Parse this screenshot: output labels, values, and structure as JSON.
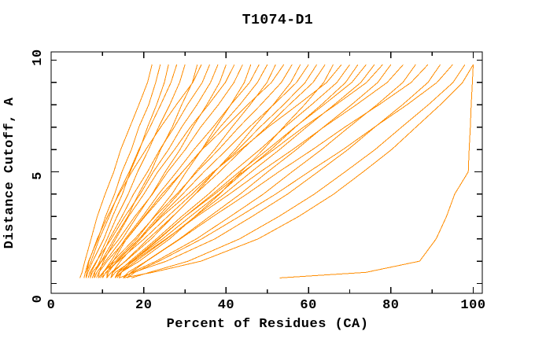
{
  "chart_data": {
    "type": "line",
    "title": "T1074-D1",
    "line_color": "#ff8c00",
    "axis_color": "#000000",
    "background_color": "#ffffff",
    "grid": false,
    "legend": "none",
    "x_axis": {
      "label": "Percent of Residues (CA)",
      "range": [
        -2.5,
        102.2
      ],
      "minor_tick_interval": 10,
      "major_tick_interval": 20,
      "tick_labels": [
        0,
        20,
        40,
        60,
        80,
        100
      ]
    },
    "y_axis": {
      "label": "Distance Cutoff, A",
      "range": [
        -0.44,
        10.37
      ],
      "minor_tick_interval": 1,
      "major_ticks": [
        5
      ],
      "tick_labels": [
        0,
        5,
        10
      ]
    },
    "cutoffs": [
      0.25,
      0.5,
      1,
      2,
      3,
      4,
      5,
      6,
      7,
      8,
      9,
      9.8
    ],
    "series": [
      [
        4.5,
        5,
        5.7,
        7.2,
        8.7,
        10.6,
        12.7,
        14.4,
        16.6,
        18.8,
        20.9,
        22
      ],
      [
        5.5,
        5.8,
        6.6,
        8.9,
        10.7,
        12.9,
        14.7,
        17,
        18.8,
        21.2,
        22.9,
        24
      ],
      [
        6,
        6.4,
        7.6,
        10.3,
        12.4,
        14.8,
        16.7,
        19,
        20.9,
        23.1,
        25,
        26
      ],
      [
        6,
        6.1,
        7.2,
        9.2,
        11.6,
        13.8,
        16.5,
        18.8,
        21.5,
        24.1,
        26.6,
        28
      ],
      [
        7,
        7.2,
        8.6,
        11.1,
        13.5,
        16.2,
        18.5,
        21.2,
        23.6,
        26.3,
        28.7,
        30
      ],
      [
        7,
        7.5,
        9.7,
        12.8,
        16.1,
        18.7,
        21.7,
        24.1,
        26.9,
        29.2,
        31.8,
        33
      ],
      [
        6,
        6.1,
        6.7,
        8.7,
        11.2,
        14,
        17.1,
        20.5,
        24.1,
        27.9,
        31.9,
        34
      ],
      [
        8,
        8.1,
        9.3,
        11.7,
        14.7,
        17.5,
        20.9,
        23.9,
        27.4,
        30.6,
        34.2,
        36
      ],
      [
        6.5,
        6.9,
        8.5,
        12.1,
        15.4,
        19.1,
        22.3,
        26,
        29.2,
        32.9,
        36.2,
        38
      ],
      [
        8,
        8.6,
        10.7,
        14.8,
        18.3,
        22,
        25.2,
        28.8,
        31.9,
        35.3,
        38.4,
        40
      ],
      [
        9,
        9.2,
        10.2,
        13.2,
        16.3,
        20,
        23.4,
        27.5,
        31.3,
        35.7,
        39.8,
        42
      ],
      [
        7.5,
        8,
        9.8,
        14,
        17.8,
        22.1,
        25.8,
        30.1,
        33.8,
        38.1,
        41.9,
        44
      ],
      [
        9,
        10.1,
        13.1,
        18.3,
        22.5,
        26.8,
        30.3,
        34.1,
        37.5,
        41.1,
        44.4,
        46
      ],
      [
        10,
        10.2,
        12,
        15.5,
        19.7,
        23.6,
        28,
        32.2,
        36.8,
        41.1,
        45.7,
        48
      ],
      [
        8.5,
        9.1,
        11.1,
        15.9,
        20.3,
        25,
        29.4,
        34.1,
        38.5,
        43.3,
        47.6,
        50
      ],
      [
        10,
        10.8,
        13.6,
        18.9,
        23.5,
        28.4,
        32.6,
        37.2,
        41.4,
        45.8,
        49.9,
        52
      ],
      [
        11,
        11.1,
        12.6,
        15.8,
        20.1,
        24.4,
        29.4,
        34.2,
        39.8,
        45.2,
        51,
        54
      ],
      [
        9.5,
        10.1,
        12.5,
        17.8,
        22.7,
        28,
        32.9,
        38.2,
        43.1,
        48.4,
        53.4,
        56
      ],
      [
        11,
        12.1,
        15.6,
        21.8,
        27.1,
        32.5,
        37.2,
        42.2,
        46.7,
        51.4,
        55.7,
        58
      ],
      [
        12,
        12.4,
        14.3,
        19.2,
        24,
        29.4,
        34.6,
        40.2,
        45.6,
        51.5,
        57.1,
        60
      ],
      [
        10,
        10.8,
        13.8,
        20.1,
        25.8,
        31.7,
        37.1,
        42.9,
        48.2,
        53.9,
        59.2,
        62
      ],
      [
        12,
        12.5,
        15.5,
        21.1,
        27,
        32.5,
        38.4,
        43.9,
        49.8,
        55.3,
        61.1,
        64
      ],
      [
        13,
        14.5,
        18.9,
        26.3,
        32.4,
        38.4,
        43.6,
        49,
        53.9,
        59,
        63.7,
        66
      ],
      [
        11,
        11.4,
        13.4,
        18.9,
        24.4,
        30.7,
        36.9,
        43.6,
        50.2,
        57.4,
        64.4,
        68
      ],
      [
        13,
        13.7,
        16.7,
        23.1,
        29.2,
        35.7,
        41.7,
        48.2,
        54.2,
        60.7,
        66.9,
        70
      ],
      [
        12,
        13.1,
        17.1,
        24.6,
        31.3,
        38.2,
        44.4,
        50.9,
        56.8,
        63.1,
        69,
        72
      ],
      [
        14,
        14.6,
        17.3,
        23.8,
        30,
        36.7,
        43.2,
        50.1,
        56.7,
        63.7,
        70.5,
        74
      ],
      [
        13.5,
        14.5,
        18.1,
        25.6,
        32.5,
        39.5,
        46.1,
        53,
        59.5,
        66.2,
        72.7,
        76
      ],
      [
        14,
        14.5,
        17.1,
        23.6,
        30,
        37.2,
        44.1,
        51.6,
        58.8,
        66.6,
        74.1,
        78
      ],
      [
        15,
        16.2,
        20.6,
        28.7,
        36,
        43.4,
        50.1,
        57.1,
        63.6,
        70.4,
        76.8,
        80
      ],
      [
        13,
        13.9,
        17.5,
        25.4,
        32.9,
        40.8,
        48.3,
        56.2,
        63.7,
        71.6,
        79.1,
        83
      ],
      [
        15,
        17,
        23,
        32.8,
        41,
        49,
        56,
        63.2,
        69.8,
        76.6,
        82.9,
        86
      ],
      [
        16,
        16.9,
        20.7,
        28.9,
        36.8,
        45,
        52.8,
        61,
        68.8,
        77.1,
        84.9,
        89
      ],
      [
        14,
        17.5,
        25.5,
        37.3,
        46.3,
        54.9,
        62.3,
        69.6,
        76.1,
        82.8,
        89,
        92
      ],
      [
        16,
        17.8,
        23.7,
        34.1,
        43.2,
        52,
        60.1,
        68.4,
        76,
        83.9,
        91.2,
        95
      ],
      [
        17,
        21.4,
        30.8,
        43.3,
        52.8,
        61.4,
        68.9,
        76.2,
        82.6,
        89.1,
        95.1,
        98
      ],
      [
        15,
        22.2,
        33.9,
        47.8,
        57.6,
        66.1,
        73.3,
        80.2,
        86.1,
        92,
        97.4,
        100
      ],
      [
        53,
        74,
        87,
        91,
        93.5,
        95.5,
        98.8,
        99,
        99.3,
        99.5,
        99.8,
        100
      ]
    ]
  }
}
